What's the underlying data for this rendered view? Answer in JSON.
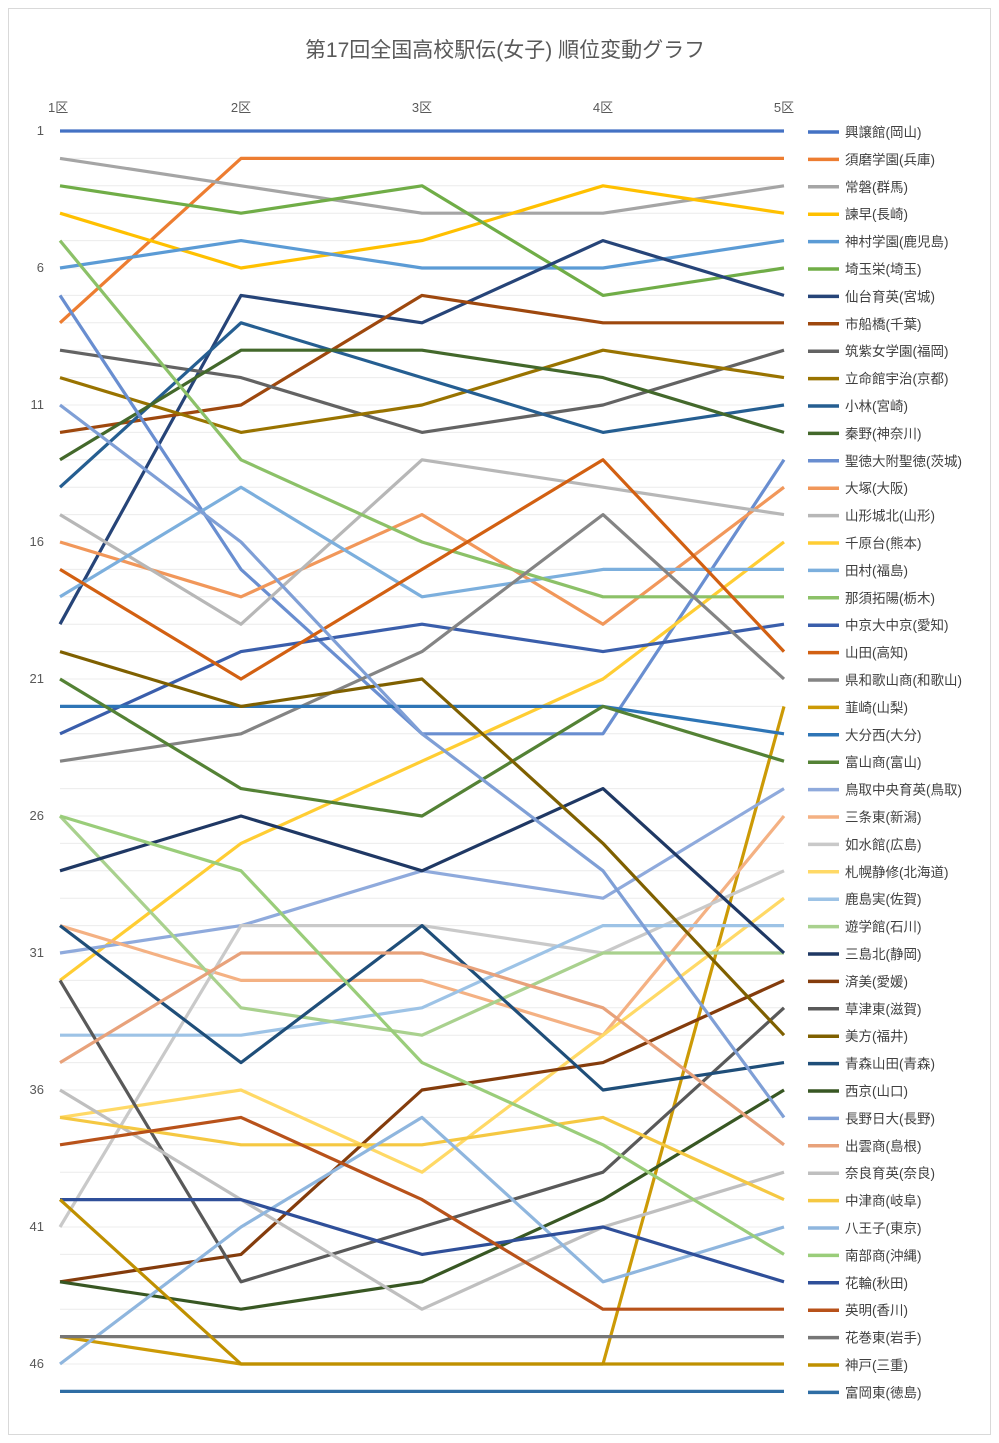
{
  "chart_data": {
    "type": "line",
    "title": "第17回全国高校駅伝(女子) 順位変動グラフ",
    "categories": [
      "1区",
      "2区",
      "3区",
      "4区",
      "5区"
    ],
    "y_ticks": [
      "1",
      "6",
      "11",
      "16",
      "21",
      "26",
      "31",
      "36",
      "41",
      "46"
    ],
    "y_range": [
      1,
      47
    ],
    "y_reversed": true,
    "grid": "horizontal",
    "legend_position": "right",
    "series": [
      {
        "name": "興譲館(岡山)",
        "color": "#4472c4",
        "values": [
          1,
          1,
          1,
          1,
          1
        ]
      },
      {
        "name": "須磨学園(兵庫)",
        "color": "#ed7d31",
        "values": [
          8,
          2,
          2,
          2,
          2
        ]
      },
      {
        "name": "常磐(群馬)",
        "color": "#a5a5a5",
        "values": [
          2,
          3,
          4,
          4,
          3
        ]
      },
      {
        "name": "諫早(長崎)",
        "color": "#ffc000",
        "values": [
          4,
          6,
          5,
          3,
          4
        ]
      },
      {
        "name": "神村学園(鹿児島)",
        "color": "#5b9bd5",
        "values": [
          6,
          5,
          6,
          6,
          5
        ]
      },
      {
        "name": "埼玉栄(埼玉)",
        "color": "#70ad47",
        "values": [
          3,
          4,
          3,
          7,
          6
        ]
      },
      {
        "name": "仙台育英(宮城)",
        "color": "#264478",
        "values": [
          19,
          7,
          8,
          5,
          7
        ]
      },
      {
        "name": "市船橋(千葉)",
        "color": "#9e480e",
        "values": [
          12,
          11,
          7,
          8,
          8
        ]
      },
      {
        "name": "筑紫女学園(福岡)",
        "color": "#636363",
        "values": [
          9,
          10,
          12,
          11,
          9
        ]
      },
      {
        "name": "立命館宇治(京都)",
        "color": "#997300",
        "values": [
          10,
          12,
          11,
          9,
          10
        ]
      },
      {
        "name": "小林(宮崎)",
        "color": "#255e91",
        "values": [
          14,
          8,
          10,
          12,
          11
        ]
      },
      {
        "name": "秦野(神奈川)",
        "color": "#43682b",
        "values": [
          13,
          9,
          9,
          10,
          12
        ]
      },
      {
        "name": "聖徳大附聖徳(茨城)",
        "color": "#698ed0",
        "values": [
          7,
          17,
          23,
          23,
          13
        ]
      },
      {
        "name": "大塚(大阪)",
        "color": "#f1975a",
        "values": [
          16,
          18,
          15,
          19,
          14
        ]
      },
      {
        "name": "山形城北(山形)",
        "color": "#b7b7b7",
        "values": [
          15,
          19,
          13,
          14,
          15
        ]
      },
      {
        "name": "千原台(熊本)",
        "color": "#ffcd33",
        "values": [
          32,
          27,
          24,
          21,
          16
        ]
      },
      {
        "name": "田村(福島)",
        "color": "#7cafdd",
        "values": [
          18,
          14,
          18,
          17,
          17
        ]
      },
      {
        "name": "那須拓陽(栃木)",
        "color": "#8cc168",
        "values": [
          5,
          13,
          16,
          18,
          18
        ]
      },
      {
        "name": "中京大中京(愛知)",
        "color": "#3a5eab",
        "values": [
          23,
          20,
          19,
          20,
          19
        ]
      },
      {
        "name": "山田(高知)",
        "color": "#d26012",
        "values": [
          17,
          21,
          17,
          13,
          20
        ]
      },
      {
        "name": "県和歌山商(和歌山)",
        "color": "#848484",
        "values": [
          24,
          23,
          20,
          15,
          21
        ]
      },
      {
        "name": "韮崎(山梨)",
        "color": "#cc9a06",
        "values": [
          45,
          46,
          46,
          46,
          22
        ]
      },
      {
        "name": "大分西(大分)",
        "color": "#2e75b6",
        "values": [
          22,
          22,
          22,
          22,
          23
        ]
      },
      {
        "name": "富山商(富山)",
        "color": "#548235",
        "values": [
          21,
          25,
          26,
          22,
          24
        ]
      },
      {
        "name": "鳥取中央育英(鳥取)",
        "color": "#8faadc",
        "values": [
          31,
          30,
          28,
          29,
          25
        ]
      },
      {
        "name": "三条東(新潟)",
        "color": "#f4b183",
        "values": [
          30,
          32,
          32,
          34,
          26
        ]
      },
      {
        "name": "如水館(広島)",
        "color": "#c9c9c9",
        "values": [
          41,
          30,
          30,
          31,
          28
        ]
      },
      {
        "name": "札幌静修(北海道)",
        "color": "#ffd966",
        "values": [
          37,
          36,
          39,
          34,
          29
        ]
      },
      {
        "name": "鹿島実(佐賀)",
        "color": "#9dc3e6",
        "values": [
          34,
          34,
          33,
          30,
          30
        ]
      },
      {
        "name": "遊学館(石川)",
        "color": "#a9d18e",
        "values": [
          26,
          33,
          34,
          31,
          31
        ]
      },
      {
        "name": "三島北(静岡)",
        "color": "#1f3864",
        "values": [
          28,
          26,
          28,
          25,
          31
        ]
      },
      {
        "name": "済美(愛媛)",
        "color": "#843c0c",
        "values": [
          43,
          42,
          36,
          35,
          32
        ]
      },
      {
        "name": "草津東(滋賀)",
        "color": "#595959",
        "values": [
          32,
          43,
          41,
          39,
          33
        ]
      },
      {
        "name": "美方(福井)",
        "color": "#7f6000",
        "values": [
          20,
          22,
          21,
          27,
          34
        ]
      },
      {
        "name": "青森山田(青森)",
        "color": "#1f4e79",
        "values": [
          30,
          35,
          30,
          36,
          35
        ]
      },
      {
        "name": "西京(山口)",
        "color": "#385723",
        "values": [
          43,
          44,
          43,
          40,
          36
        ]
      },
      {
        "name": "長野日大(長野)",
        "color": "#7f9fd6",
        "values": [
          11,
          16,
          23,
          28,
          37
        ]
      },
      {
        "name": "出雲商(島根)",
        "color": "#e8a27b",
        "values": [
          35,
          31,
          31,
          33,
          38
        ]
      },
      {
        "name": "奈良育英(奈良)",
        "color": "#bfbfbf",
        "values": [
          36,
          40,
          44,
          41,
          39
        ]
      },
      {
        "name": "中津商(岐阜)",
        "color": "#f5c842",
        "values": [
          37,
          38,
          38,
          37,
          40
        ]
      },
      {
        "name": "八王子(東京)",
        "color": "#8fb6de",
        "values": [
          46,
          41,
          37,
          43,
          41
        ]
      },
      {
        "name": "南部商(沖縄)",
        "color": "#9acd7a",
        "values": [
          26,
          28,
          35,
          38,
          42
        ]
      },
      {
        "name": "花輪(秋田)",
        "color": "#2f4f99",
        "values": [
          40,
          40,
          42,
          41,
          43
        ]
      },
      {
        "name": "英明(香川)",
        "color": "#b8521a",
        "values": [
          38,
          37,
          40,
          44,
          44
        ]
      },
      {
        "name": "花巻東(岩手)",
        "color": "#767676",
        "values": [
          45,
          45,
          45,
          45,
          45
        ]
      },
      {
        "name": "神戸(三重)",
        "color": "#bf9000",
        "values": [
          40,
          46,
          46,
          46,
          46
        ]
      },
      {
        "name": "富岡東(徳島)",
        "color": "#2e6da4",
        "values": [
          47,
          47,
          47,
          47,
          47
        ]
      }
    ]
  }
}
